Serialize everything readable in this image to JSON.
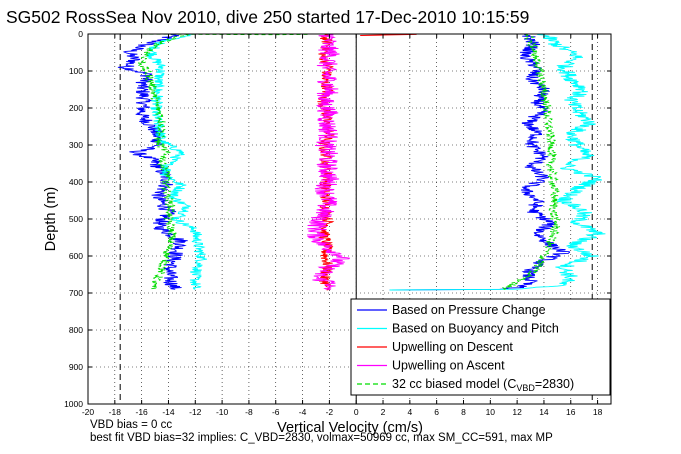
{
  "figure": {
    "title": "SG502 RossSea Nov 2010, dive 250 started 17-Dec-2010 10:15:59",
    "footnote_1": "VBD bias = 0 cc",
    "footnote_2": "best fit VBD bias=32 implies: C_VBD=2830, volmax=50969 cc, max SM_CC=591, max MP"
  },
  "chart_data": {
    "type": "line",
    "title": "SG502 RossSea Nov 2010, dive 250 started 17-Dec-2010 10:15:59",
    "xlabel": "Vertical Velocity (cm/s)",
    "ylabel": "Depth (m)",
    "xlim": [
      -20,
      19
    ],
    "ylim": [
      1000,
      0
    ],
    "y_reversed": true,
    "grid": true,
    "xticks": [
      -20,
      -18,
      -16,
      -14,
      -12,
      -10,
      -8,
      -6,
      -4,
      -2,
      0,
      2,
      4,
      6,
      8,
      10,
      12,
      14,
      16,
      18
    ],
    "yticks": [
      0,
      100,
      200,
      300,
      400,
      500,
      600,
      700,
      800,
      900,
      1000
    ],
    "legend_position": "bottom-right",
    "legend": [
      {
        "label": "Based on Pressure Change",
        "color": "#0000ff",
        "dash": "solid"
      },
      {
        "label": "Based on Buoyancy and Pitch",
        "color": "#00ffff",
        "dash": "solid"
      },
      {
        "label": "Upwelling on Descent",
        "color": "#ff0000",
        "dash": "solid"
      },
      {
        "label": "Upwelling on Ascent",
        "color": "#ff00ff",
        "dash": "solid"
      },
      {
        "label_main": "32 cc biased model (C",
        "label_sub": "VBD",
        "label_tail": "=2830)",
        "color": "#00dd00",
        "dash": "dashed"
      }
    ],
    "reference_lines": [
      {
        "x": -17.6,
        "color": "#000000",
        "dash": "dashed"
      },
      {
        "x": 17.6,
        "color": "#000000",
        "dash": "dashed"
      },
      {
        "x": 0,
        "color": "#000000",
        "dash": "solid"
      }
    ],
    "series": [
      {
        "name": "Based on Pressure Change",
        "color": "#0000ff",
        "dash": "solid",
        "jitter": 0.6,
        "x": [
          -13.5,
          -14.5,
          -15.8,
          -17.0,
          -16.5,
          -17.2,
          -15.5,
          -16.0,
          -15.8,
          -16.0,
          -15.0,
          -14.7,
          -16.5,
          -15.2,
          -14.5,
          -14.0,
          -14.8,
          -14.0,
          -14.8,
          -13.0,
          -13.5,
          -14.0,
          -13.8,
          -13.5
        ],
        "y": [
          0,
          15,
          30,
          50,
          70,
          90,
          110,
          140,
          180,
          220,
          260,
          300,
          320,
          340,
          370,
          400,
          440,
          480,
          520,
          560,
          600,
          640,
          670,
          690
        ]
      },
      {
        "name": "Based on Buoyancy and Pitch",
        "color": "#00ffff",
        "dash": "solid",
        "jitter": 0.45,
        "x": [
          -12.0,
          -14.0,
          -15.0,
          -15.2,
          -14.5,
          -14.8,
          -14.8,
          -15.0,
          -14.7,
          -14.5,
          -13.0,
          -14.0,
          -14.2,
          -13.0,
          -13.7,
          -12.5,
          -13.0,
          -13.5,
          -12.0,
          -11.8,
          -11.5,
          -12.0,
          -12.0,
          -12.0
        ],
        "y": [
          0,
          15,
          30,
          60,
          90,
          130,
          170,
          210,
          250,
          290,
          320,
          350,
          380,
          410,
          440,
          470,
          490,
          500,
          530,
          570,
          610,
          650,
          680,
          690
        ]
      },
      {
        "name": "Upwelling on Descent",
        "color": "#ff0000",
        "dash": "solid",
        "jitter": 0.45,
        "x": [
          -2.4,
          -2.1,
          -2.5,
          -2.0,
          -2.4,
          -2.1,
          -2.5,
          -2.2,
          -2.3,
          -2.0,
          -2.5,
          -2.2,
          -2.3,
          -2.1,
          -2.4,
          -2.2,
          -2.3,
          -2.1,
          -2.4,
          -2.2,
          -2.3,
          -2.1,
          -2.4,
          -2.2,
          -2.3,
          -2.2,
          -2.2
        ],
        "y": [
          0,
          30,
          60,
          90,
          120,
          150,
          180,
          210,
          240,
          270,
          300,
          330,
          360,
          390,
          420,
          450,
          480,
          510,
          540,
          570,
          600,
          630,
          660,
          680,
          688,
          690,
          692
        ]
      },
      {
        "name": "Upwelling on Ascent",
        "color": "#ff00ff",
        "dash": "solid",
        "jitter": 0.8,
        "x": [
          -2.0,
          -2.2,
          -1.9,
          -2.3,
          -2.1,
          -2.0,
          -2.4,
          -2.1,
          -2.2,
          -2.0,
          -2.3,
          -2.1,
          -2.2,
          -2.0,
          -2.3,
          -2.1,
          -2.4,
          -2.8,
          -3.0,
          -2.5,
          -1.0,
          -2.0,
          -3.0,
          -1.5,
          -2.5,
          -2.0
        ],
        "y": [
          0,
          30,
          60,
          90,
          120,
          150,
          180,
          210,
          240,
          270,
          300,
          330,
          360,
          390,
          420,
          450,
          480,
          510,
          540,
          570,
          600,
          630,
          660,
          675,
          685,
          692
        ]
      },
      {
        "name": "32 cc biased model (C_VBD=2830)",
        "color": "#00dd00",
        "dash": "dashed",
        "jitter": 0.35,
        "x": [
          -12.5,
          -14.0,
          -15.0,
          -15.5,
          -16.0,
          -15.5,
          -15.2,
          -15.0,
          -14.8,
          -14.5,
          -14.5,
          -14.8,
          -14.2,
          -14.5,
          -14.0,
          -14.3,
          -14.0,
          -13.8,
          -14.0,
          -13.7,
          -14.0,
          -14.3,
          -14.8,
          -15.3
        ],
        "y": [
          0,
          15,
          30,
          50,
          80,
          110,
          140,
          170,
          200,
          230,
          260,
          290,
          320,
          350,
          380,
          410,
          440,
          470,
          500,
          540,
          580,
          620,
          660,
          690
        ]
      },
      {
        "name": "Based on Pressure Change",
        "color": "#0000ff",
        "dash": "solid",
        "jitter": 0.55,
        "x": [
          12.8,
          13.2,
          12.5,
          13.5,
          13.0,
          14.0,
          13.5,
          13.8,
          12.8,
          13.5,
          13.0,
          14.0,
          13.0,
          14.0,
          12.5,
          13.5,
          13.2,
          14.5,
          13.5,
          14.5,
          15.5,
          13.5,
          12.8,
          13.0,
          12.0,
          10.5,
          2.5
        ],
        "y": [
          0,
          30,
          60,
          90,
          120,
          150,
          180,
          210,
          240,
          270,
          300,
          330,
          360,
          390,
          420,
          450,
          480,
          510,
          540,
          570,
          590,
          620,
          650,
          670,
          685,
          690,
          692
        ]
      },
      {
        "name": "Based on Buoyancy and Pitch",
        "color": "#00ffff",
        "dash": "solid",
        "jitter": 0.65,
        "x": [
          14.0,
          15.0,
          16.5,
          15.5,
          16.0,
          17.0,
          16.0,
          16.5,
          17.5,
          16.0,
          16.5,
          17.2,
          15.5,
          18.0,
          16.5,
          15.5,
          17.0,
          16.5,
          18.0,
          16.0,
          17.5,
          15.5,
          16.0,
          15.0,
          12.0,
          2.5
        ],
        "y": [
          0,
          30,
          60,
          90,
          120,
          150,
          180,
          210,
          240,
          270,
          300,
          330,
          360,
          390,
          420,
          450,
          480,
          510,
          540,
          570,
          600,
          630,
          660,
          680,
          690,
          692
        ]
      },
      {
        "name": "Upwelling on Descent",
        "color": "#ff0000",
        "dash": "solid",
        "jitter": 0.0,
        "x": [
          0.3,
          4.5,
          2.0,
          0.3
        ],
        "y": [
          0,
          1,
          3,
          4
        ]
      },
      {
        "name": "32 cc biased model (C_VBD=2830)",
        "color": "#00dd00",
        "dash": "dashed",
        "jitter": 0.35,
        "x": [
          12.8,
          13.2,
          13.5,
          13.8,
          14.0,
          14.2,
          14.3,
          14.5,
          14.6,
          14.5,
          14.7,
          14.8,
          14.7,
          14.9,
          14.5,
          14.0,
          13.5,
          12.8,
          12.0,
          11.5,
          11.0
        ],
        "y": [
          0,
          40,
          80,
          120,
          160,
          200,
          240,
          280,
          320,
          360,
          400,
          440,
          480,
          520,
          560,
          600,
          630,
          655,
          670,
          680,
          690
        ]
      },
      {
        "name": "32 cc biased model (C_VBD=2830)",
        "color": "#00dd00",
        "dash": "dashed",
        "jitter": 0.0,
        "x": [
          -17.5,
          -6.0,
          -3.5
        ],
        "y": [
          0,
          2,
          1
        ]
      }
    ]
  }
}
